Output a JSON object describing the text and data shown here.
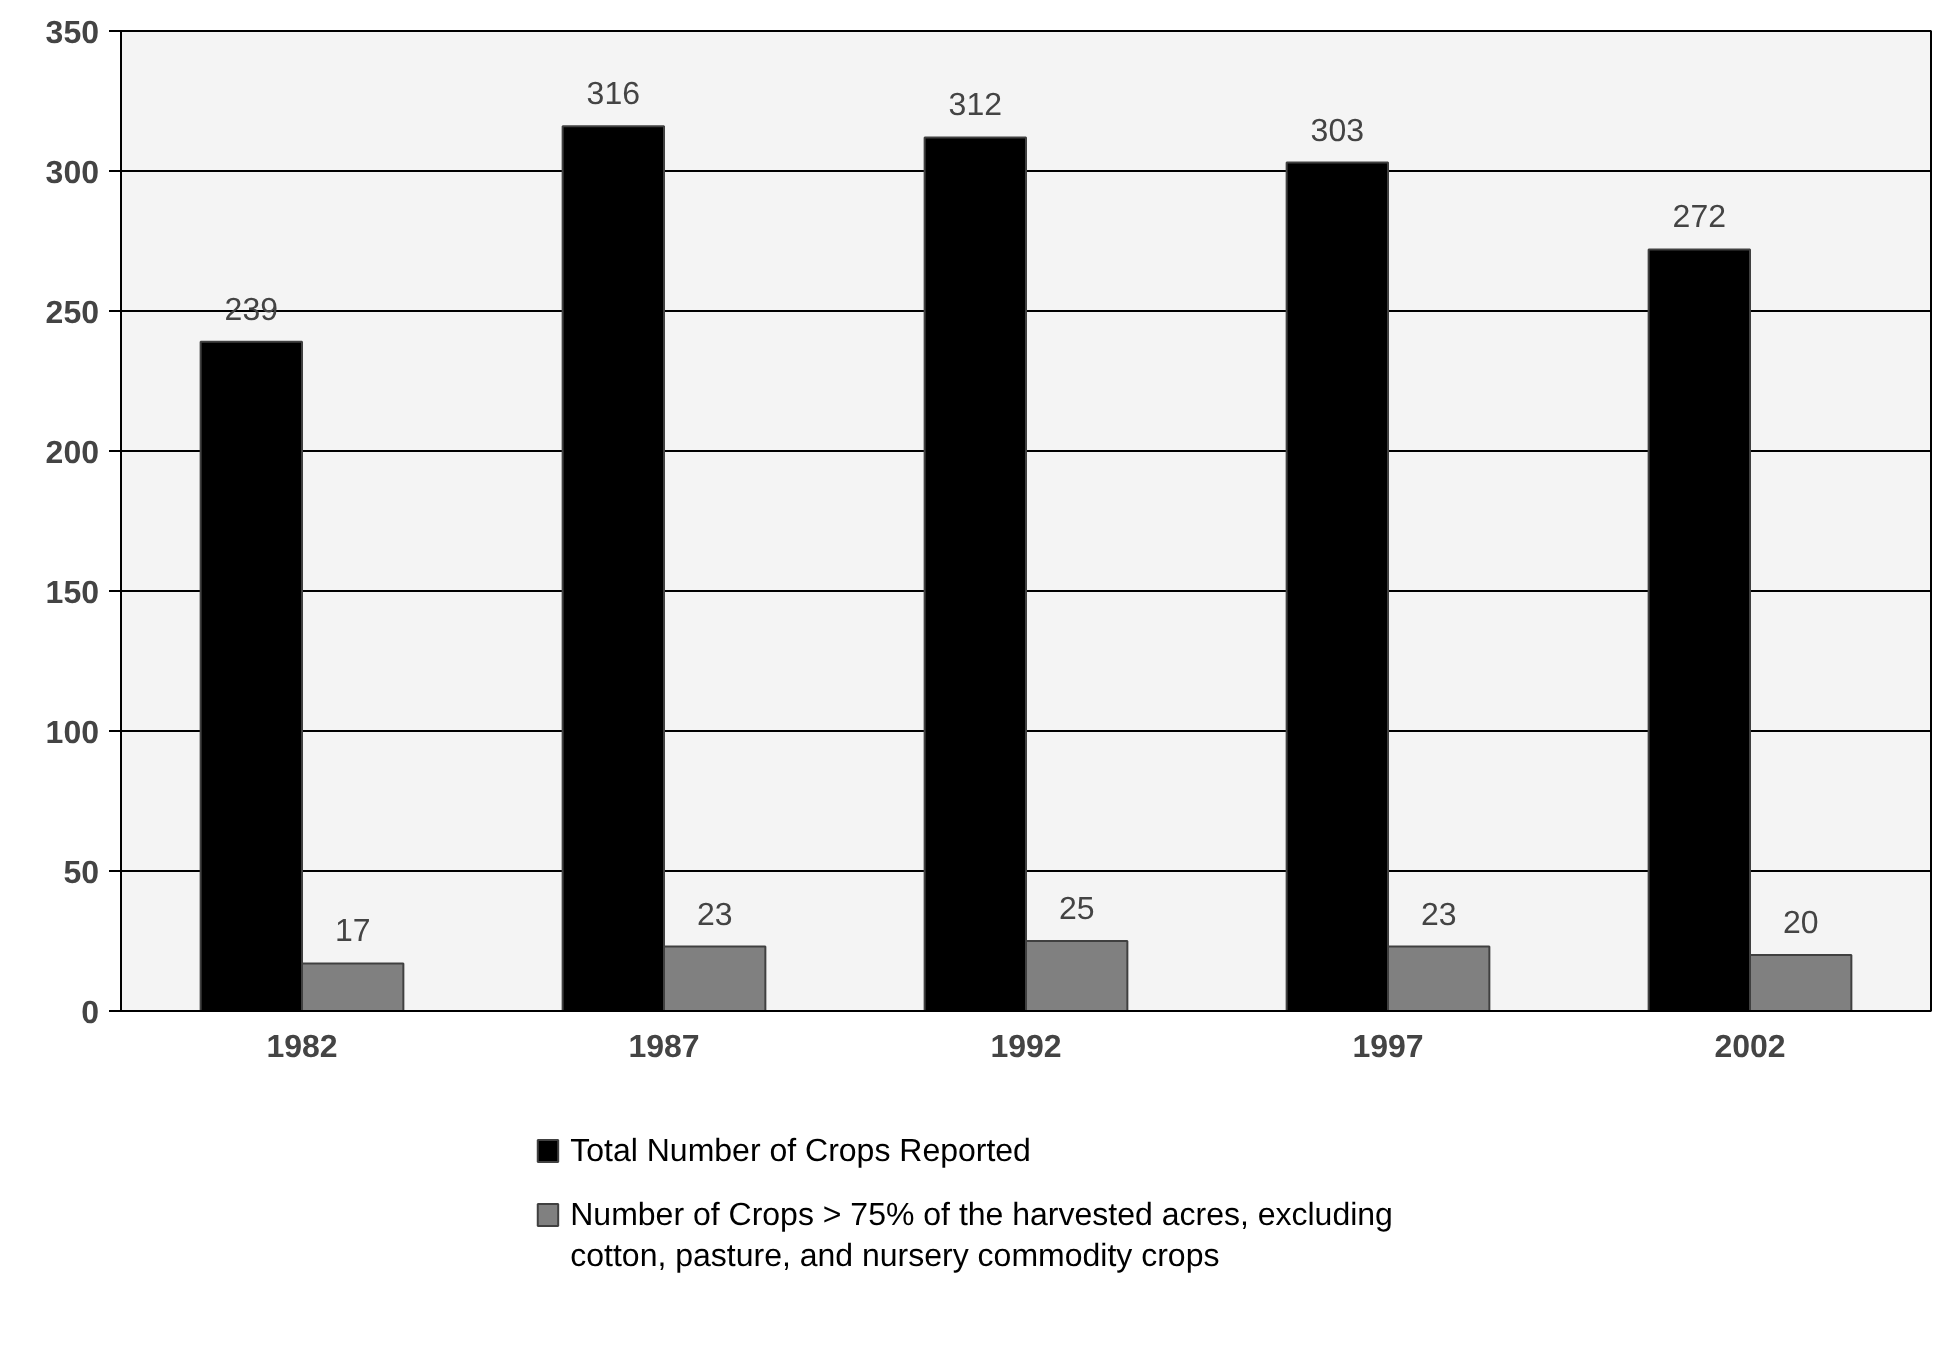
{
  "chart_data": {
    "type": "bar",
    "categories": [
      "1982",
      "1987",
      "1992",
      "1997",
      "2002"
    ],
    "series": [
      {
        "name": "Total Number of Crops Reported",
        "color": "#000000",
        "values": [
          239,
          316,
          312,
          303,
          272
        ]
      },
      {
        "name": "Number of Crops > 75% of the harvested acres, excluding cotton,  pasture, and nursery commodity crops",
        "color": "#808080",
        "values": [
          17,
          23,
          25,
          23,
          20
        ]
      }
    ],
    "ylim": [
      0,
      350
    ],
    "yticks": [
      0,
      50,
      100,
      150,
      200,
      250,
      300,
      350
    ],
    "grid": "y",
    "legend": "bottom",
    "data_labels": true
  }
}
